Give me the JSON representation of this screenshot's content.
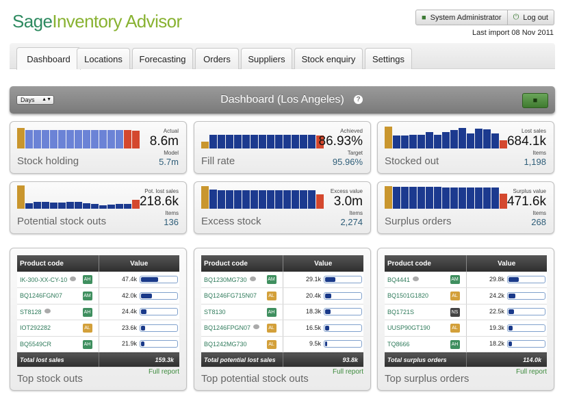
{
  "app": {
    "logo_part1": "Sage",
    "logo_part2": "Inventory Advisor"
  },
  "header": {
    "user_label": "System Administrator",
    "logout_label": "Log out",
    "last_import": "Last import 08 Nov 2011"
  },
  "tabs": [
    {
      "label": "Dashboard",
      "active": true
    },
    {
      "label": "Locations"
    },
    {
      "label": "Forecasting"
    },
    {
      "label": "Orders"
    },
    {
      "label": "Suppliers"
    },
    {
      "label": "Stock enquiry"
    },
    {
      "label": "Settings"
    }
  ],
  "dashboard": {
    "period_select": "Days",
    "title": "Dashboard (Los Angeles)",
    "help": "?"
  },
  "colors": {
    "gold": "#c9962e",
    "blue": "#1c3a8f",
    "lightblue": "#6b83d6",
    "red": "#d4482e",
    "green": "#2e7a5a"
  },
  "kpis": [
    {
      "name": "Stock holding",
      "label1": "Actual",
      "value1": "8.6m",
      "label2": "Model",
      "value2": "5.7m",
      "bars": [
        0.88,
        0.8,
        0.8,
        0.8,
        0.8,
        0.8,
        0.8,
        0.8,
        0.8,
        0.8,
        0.8,
        0.8,
        0.8,
        0.78,
        0.76
      ],
      "colors": [
        "gold",
        "lightblue",
        "lightblue",
        "lightblue",
        "lightblue",
        "lightblue",
        "lightblue",
        "lightblue",
        "lightblue",
        "lightblue",
        "lightblue",
        "lightblue",
        "lightblue",
        "red",
        "red"
      ]
    },
    {
      "name": "Fill rate",
      "label1": "Achieved",
      "value1": "86.93%",
      "label2": "Target",
      "value2": "95.96%",
      "bars": [
        0.28,
        0.58,
        0.58,
        0.58,
        0.58,
        0.58,
        0.58,
        0.58,
        0.58,
        0.58,
        0.58,
        0.58,
        0.58,
        0.58,
        0.56
      ],
      "colors": [
        "gold",
        "blue",
        "blue",
        "blue",
        "blue",
        "blue",
        "blue",
        "blue",
        "blue",
        "blue",
        "blue",
        "blue",
        "blue",
        "blue",
        "red"
      ]
    },
    {
      "name": "Stocked out",
      "label1": "Lost sales",
      "value1": "684.1k",
      "label2": "Items",
      "value2": "1,198",
      "bars": [
        0.95,
        0.56,
        0.56,
        0.6,
        0.6,
        0.7,
        0.6,
        0.7,
        0.78,
        0.88,
        0.66,
        0.86,
        0.82,
        0.66,
        0.36
      ],
      "colors": [
        "gold",
        "blue",
        "blue",
        "blue",
        "blue",
        "blue",
        "blue",
        "blue",
        "blue",
        "blue",
        "blue",
        "blue",
        "blue",
        "blue",
        "red"
      ]
    },
    {
      "name": "Potential stock outs",
      "label1": "Pot. lost sales",
      "value1": "218.6k",
      "label2": "Items",
      "value2": "136",
      "bars": [
        1.0,
        0.24,
        0.28,
        0.3,
        0.26,
        0.26,
        0.28,
        0.28,
        0.24,
        0.22,
        0.16,
        0.18,
        0.22,
        0.22,
        0.38
      ],
      "colors": [
        "gold",
        "blue",
        "blue",
        "blue",
        "blue",
        "blue",
        "blue",
        "blue",
        "blue",
        "blue",
        "blue",
        "blue",
        "blue",
        "blue",
        "red"
      ]
    },
    {
      "name": "Excess stock",
      "label1": "Excess value",
      "value1": "3.0m",
      "label2": "Items",
      "value2": "2,274",
      "bars": [
        0.98,
        0.82,
        0.8,
        0.8,
        0.8,
        0.8,
        0.8,
        0.8,
        0.8,
        0.8,
        0.8,
        0.8,
        0.8,
        0.8,
        0.62
      ],
      "colors": [
        "gold",
        "blue",
        "blue",
        "blue",
        "blue",
        "blue",
        "blue",
        "blue",
        "blue",
        "blue",
        "blue",
        "blue",
        "blue",
        "blue",
        "red"
      ]
    },
    {
      "name": "Surplus orders",
      "label1": "Surplus value",
      "value1": "471.6k",
      "label2": "Items",
      "value2": "268",
      "bars": [
        0.96,
        0.94,
        0.94,
        0.94,
        0.94,
        0.94,
        0.94,
        0.92,
        0.92,
        0.92,
        0.92,
        0.92,
        0.92,
        0.92,
        0.66
      ],
      "colors": [
        "gold",
        "blue",
        "blue",
        "blue",
        "blue",
        "blue",
        "blue",
        "blue",
        "blue",
        "blue",
        "blue",
        "blue",
        "blue",
        "blue",
        "red"
      ]
    }
  ],
  "tables": [
    {
      "title": "Top stock outs",
      "col1": "Product code",
      "col2": "Value",
      "footer_label": "Total lost sales",
      "footer_value": "159.3k",
      "full_report": "Full report",
      "rows": [
        {
          "code": "IK-300-XX-CY-10",
          "bubble": true,
          "badge": "AH",
          "value": "47.4k",
          "fill": 0.46
        },
        {
          "code": "BQ1246FGN07",
          "bubble": false,
          "badge": "AM",
          "value": "42.0k",
          "fill": 0.3
        },
        {
          "code": "ST8128",
          "bubble": true,
          "badge": "AH",
          "value": "24.4k",
          "fill": 0.14
        },
        {
          "code": "IOT292282",
          "bubble": false,
          "badge": "AL",
          "value": "23.6k",
          "fill": 0.12
        },
        {
          "code": "BQ5549CR",
          "bubble": false,
          "badge": "AH",
          "value": "21.9k",
          "fill": 0.1
        }
      ]
    },
    {
      "title": "Top potential stock outs",
      "col1": "Product code",
      "col2": "Value",
      "footer_label": "Total potential lost sales",
      "footer_value": "93.8k",
      "full_report": "Full report",
      "rows": [
        {
          "code": "BQ1230MG730",
          "bubble": true,
          "badge": "AM",
          "value": "29.1k",
          "fill": 0.28
        },
        {
          "code": "BQ1246FG715N07",
          "bubble": false,
          "badge": "AL",
          "value": "20.4k",
          "fill": 0.16
        },
        {
          "code": "ST8130",
          "bubble": false,
          "badge": "AH",
          "value": "18.3k",
          "fill": 0.14
        },
        {
          "code": "BQ1246FPGN07",
          "bubble": true,
          "badge": "AL",
          "value": "16.5k",
          "fill": 0.12
        },
        {
          "code": "BQ1242MG730",
          "bubble": false,
          "badge": "AL",
          "value": "9.5k",
          "fill": 0.06
        }
      ]
    },
    {
      "title": "Top surplus orders",
      "col1": "Product code",
      "col2": "Value",
      "footer_label": "Total surplus orders",
      "footer_value": "114.0k",
      "full_report": "Full report",
      "rows": [
        {
          "code": "BQ4441",
          "bubble": true,
          "badge": "AM",
          "value": "29.8k",
          "fill": 0.28
        },
        {
          "code": "BQ1501G1820",
          "bubble": false,
          "badge": "AL",
          "value": "24.2k",
          "fill": 0.18
        },
        {
          "code": "BQ1721S",
          "bubble": false,
          "badge": "NS",
          "value": "22.5k",
          "fill": 0.14
        },
        {
          "code": "UUSP90GT190",
          "bubble": false,
          "badge": "AL",
          "value": "19.3k",
          "fill": 0.12
        },
        {
          "code": "TQ8666",
          "bubble": false,
          "badge": "AH",
          "value": "18.2k",
          "fill": 0.1
        }
      ]
    }
  ]
}
